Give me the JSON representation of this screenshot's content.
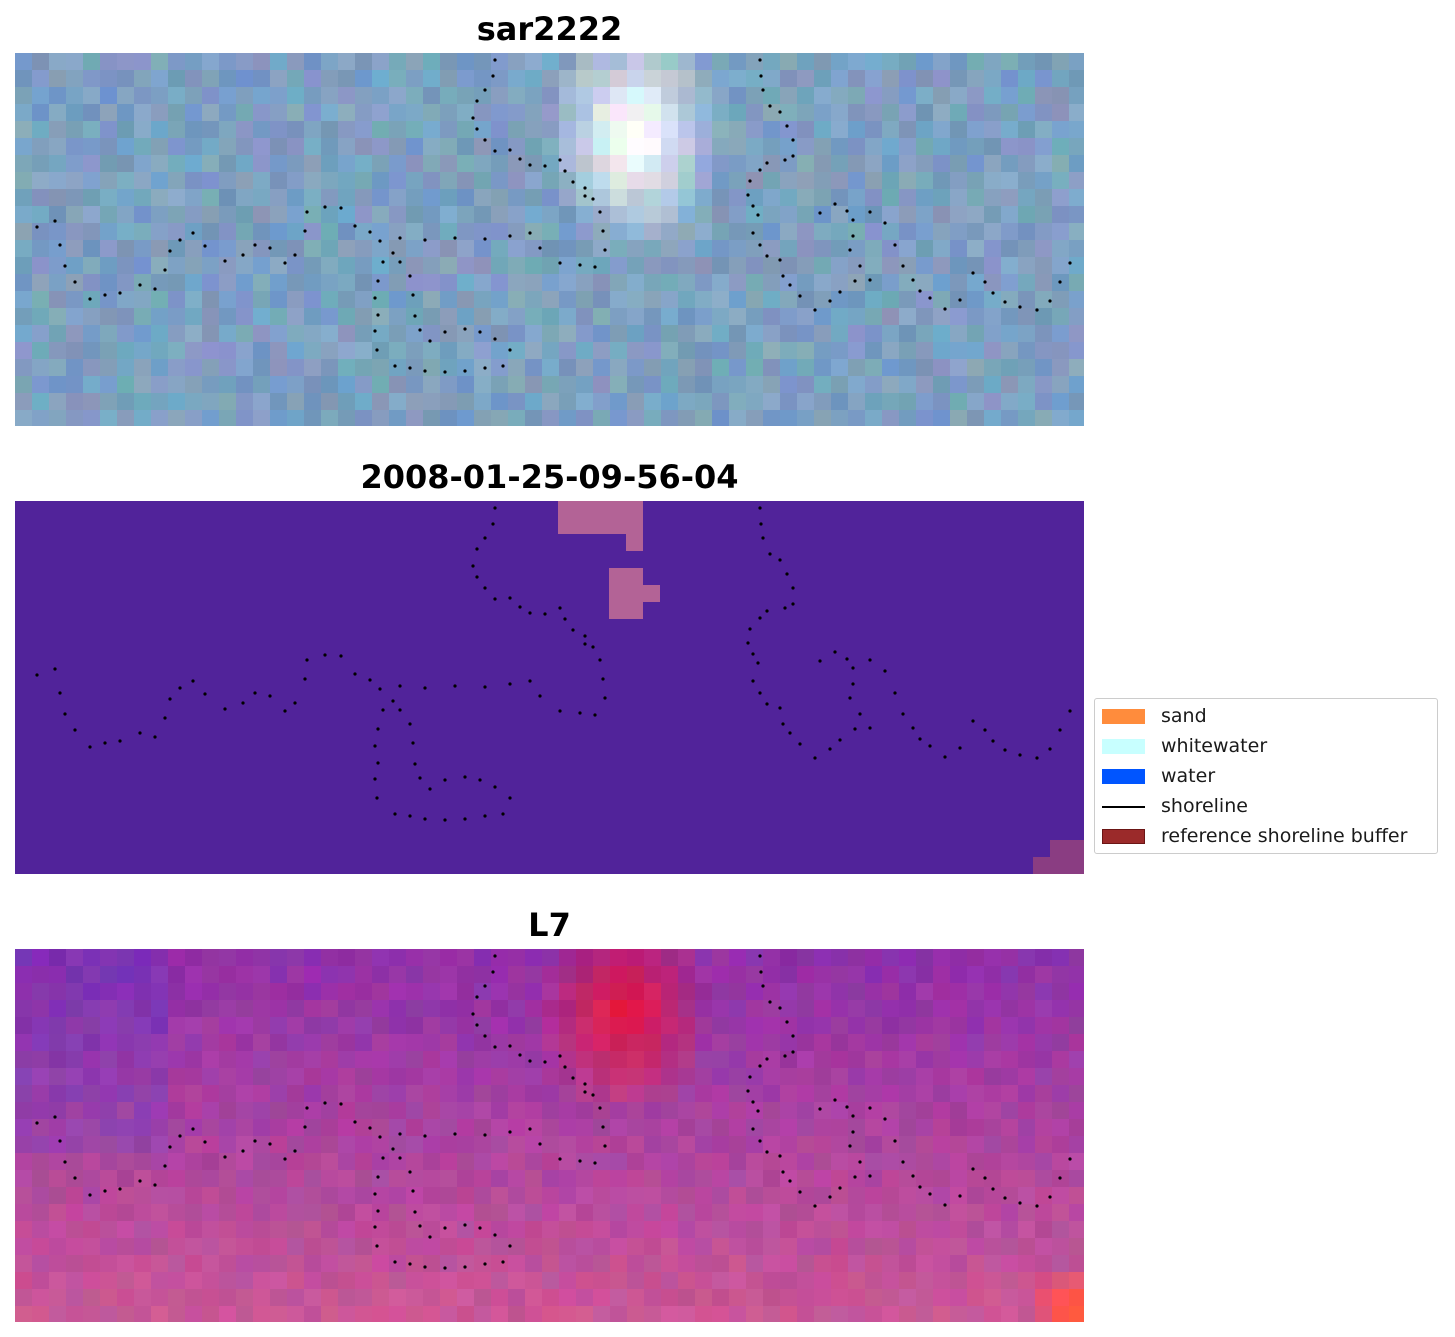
{
  "panels": [
    {
      "title": "sar2222",
      "name": "panel-sar2222"
    },
    {
      "title": "2008-01-25-09-56-04",
      "name": "panel-classification"
    },
    {
      "title": "L7",
      "name": "panel-l7"
    }
  ],
  "legend": {
    "items": [
      {
        "label": "sand",
        "color": "#ff8c3c",
        "kind": "patch"
      },
      {
        "label": "whitewater",
        "color": "#c8ffff",
        "kind": "patch"
      },
      {
        "label": "water",
        "color": "#0055ff",
        "kind": "patch"
      },
      {
        "label": "shoreline",
        "color": "#000000",
        "kind": "line"
      },
      {
        "label": "reference shoreline buffer",
        "color": "#9b2a2a",
        "kind": "patch"
      }
    ]
  },
  "colors": {
    "classification_background": "#51239a",
    "classification_patch": "#b36396",
    "shoreline_dots": "#000000"
  }
}
